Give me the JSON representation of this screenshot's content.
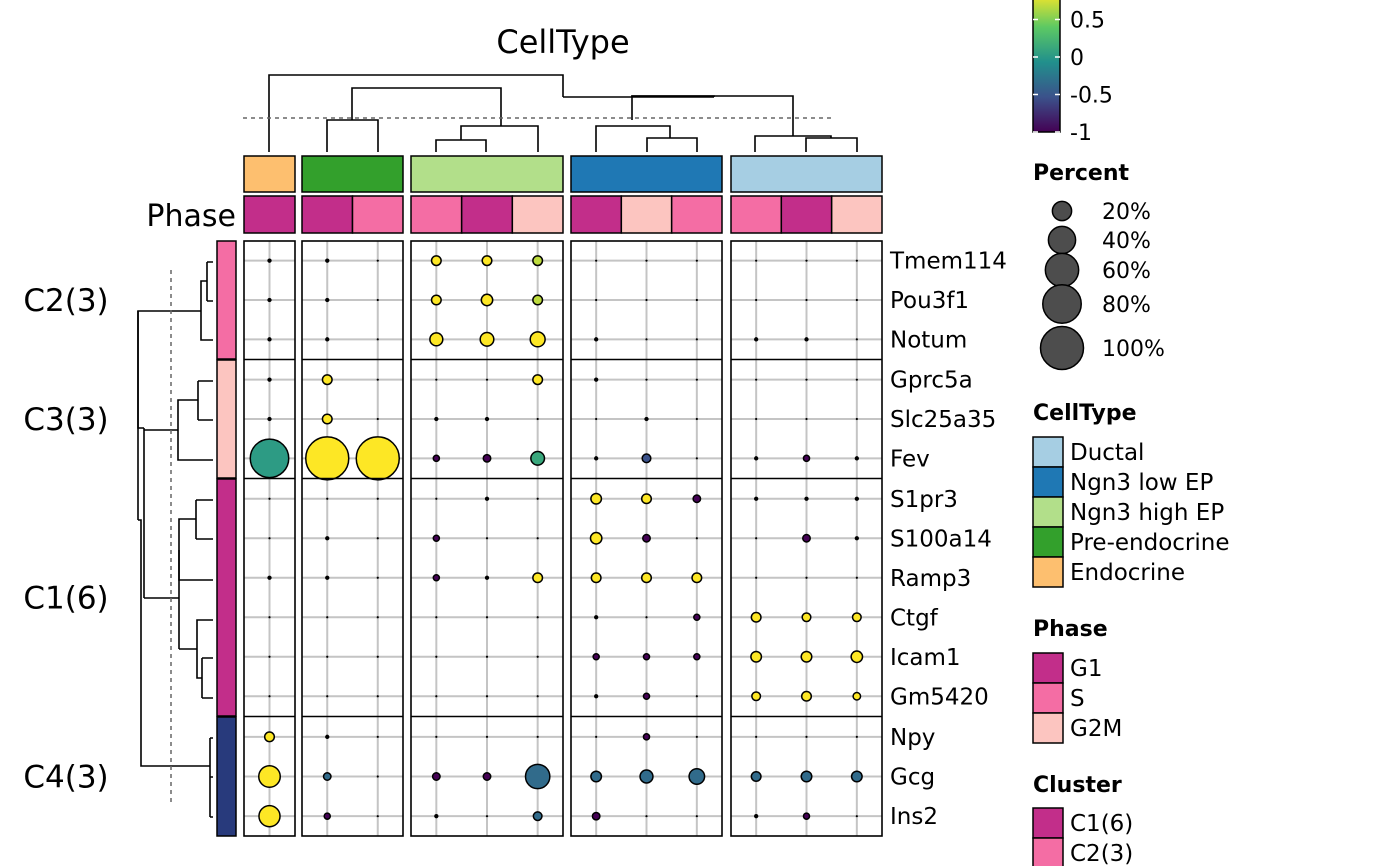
{
  "chart_data": {
    "type": "heatmap",
    "title": "CellType",
    "row_annotation_title": "Phase",
    "columns": [
      {
        "celltype": "Endocrine",
        "phase": "G1"
      },
      {
        "celltype": "Pre-endocrine",
        "phase": "G1"
      },
      {
        "celltype": "Pre-endocrine",
        "phase": "S"
      },
      {
        "celltype": "Ngn3 high EP",
        "phase": "S"
      },
      {
        "celltype": "Ngn3 high EP",
        "phase": "G1"
      },
      {
        "celltype": "Ngn3 high EP",
        "phase": "G2M"
      },
      {
        "celltype": "Ngn3 low EP",
        "phase": "G1"
      },
      {
        "celltype": "Ngn3 low EP",
        "phase": "G2M"
      },
      {
        "celltype": "Ngn3 low EP",
        "phase": "S"
      },
      {
        "celltype": "Ductal",
        "phase": "S"
      },
      {
        "celltype": "Ductal",
        "phase": "G1"
      },
      {
        "celltype": "Ductal",
        "phase": "G2M"
      }
    ],
    "row_groups": [
      {
        "label": "C2(3)",
        "phase": "S",
        "genes": [
          "Tmem114",
          "Pou3f1",
          "Notum"
        ]
      },
      {
        "label": "C3(3)",
        "phase": "G2M",
        "genes": [
          "Gprc5a",
          "Slc25a35",
          "Fev"
        ]
      },
      {
        "label": "C1(6)",
        "phase": "G1",
        "genes": [
          "S1pr3",
          "S100a14",
          "Ramp3",
          "Ctgf",
          "Icam1",
          "Gm5420"
        ]
      },
      {
        "label": "C4(3)",
        "phase": "NavyBlue",
        "genes": [
          "Npy",
          "Gcg",
          "Ins2"
        ]
      }
    ],
    "percent": [
      [
        1,
        1,
        0,
        5,
        5,
        5,
        0,
        0,
        0,
        0,
        0,
        0
      ],
      [
        1,
        1,
        0,
        5,
        7,
        5,
        0,
        0,
        0,
        0,
        0,
        0
      ],
      [
        1,
        1,
        0,
        9,
        10,
        12,
        1,
        0,
        0,
        1,
        1,
        0
      ],
      [
        1,
        5,
        0,
        0,
        0,
        5,
        1,
        0,
        0,
        0,
        0,
        0
      ],
      [
        1,
        5,
        0,
        1,
        1,
        0,
        0,
        1,
        0,
        0,
        0,
        0
      ],
      [
        80,
        100,
        100,
        2,
        3,
        10,
        1,
        4,
        0,
        1,
        2,
        1
      ],
      [
        0,
        0,
        0,
        0,
        1,
        0,
        6,
        5,
        3,
        1,
        1,
        1
      ],
      [
        0,
        1,
        0,
        2,
        0,
        0,
        7,
        3,
        0,
        0,
        3,
        1
      ],
      [
        1,
        1,
        0,
        2,
        1,
        5,
        5,
        5,
        5,
        0,
        0,
        0
      ],
      [
        0,
        0,
        0,
        0,
        0,
        0,
        1,
        0,
        2,
        5,
        4,
        4
      ],
      [
        0,
        0,
        0,
        0,
        0,
        0,
        2,
        2,
        2,
        6,
        6,
        7
      ],
      [
        0,
        0,
        0,
        0,
        0,
        0,
        1,
        2,
        0,
        4,
        5,
        3
      ],
      [
        5,
        1,
        0,
        0,
        0,
        0,
        0,
        2,
        0,
        0,
        0,
        0
      ],
      [
        25,
        3,
        0,
        3,
        3,
        32,
        6,
        9,
        13,
        5,
        6,
        6
      ],
      [
        24,
        2,
        0,
        1,
        0,
        4,
        3,
        0,
        0,
        1,
        2,
        0
      ]
    ],
    "expression": [
      [
        -1,
        -1,
        -1,
        1,
        1,
        0.8,
        -1,
        -1,
        -1,
        -1,
        -1,
        -1
      ],
      [
        -1,
        -1,
        -1,
        1,
        1,
        0.8,
        -1,
        -1,
        -1,
        -1,
        -1,
        -1
      ],
      [
        -1,
        -1,
        -1,
        1,
        1,
        1,
        -1,
        -1,
        -1,
        -1,
        -1,
        -1
      ],
      [
        -1,
        1,
        -1,
        -1,
        -1,
        1,
        -1,
        -1,
        -1,
        -1,
        -1,
        -1
      ],
      [
        -1,
        1,
        -1,
        -1,
        -1,
        -1,
        -1,
        -1,
        -1,
        -1,
        -1,
        -1
      ],
      [
        0.1,
        1,
        1,
        -1,
        -1,
        0.2,
        -0.5,
        -0.5,
        -1,
        -1,
        -1,
        -1
      ],
      [
        -1,
        -1,
        -1,
        -1,
        -1,
        -1,
        1,
        1,
        -1,
        -1,
        -1,
        -1
      ],
      [
        -1,
        -1,
        -1,
        -1,
        -1,
        -1,
        1,
        -1,
        -1,
        -1,
        -1,
        -1
      ],
      [
        -1,
        -1,
        -1,
        -1,
        -1,
        1,
        1,
        1,
        1,
        -1,
        -1,
        -1
      ],
      [
        -1,
        -1,
        -1,
        -1,
        -1,
        -1,
        -1,
        -1,
        -1,
        1,
        1,
        1
      ],
      [
        -1,
        -1,
        -1,
        -1,
        -1,
        -1,
        -1,
        -1,
        -1,
        1,
        1,
        1
      ],
      [
        -1,
        -1,
        -1,
        -1,
        -1,
        -1,
        -1,
        -1,
        -1,
        1,
        1,
        1
      ],
      [
        1,
        -1,
        -1,
        -1,
        -1,
        -1,
        -1,
        -1,
        -1,
        -1,
        -1,
        -1
      ],
      [
        1,
        -0.3,
        -1,
        -1,
        -1,
        -0.3,
        -0.3,
        -0.3,
        -0.3,
        -0.3,
        -0.3,
        -0.3
      ],
      [
        1,
        -1,
        -1,
        -1,
        -1,
        -0.3,
        -1,
        -1,
        -1,
        -1,
        -1,
        -1
      ]
    ],
    "color_scale": {
      "ticks": [
        "0.5",
        "0",
        "-0.5",
        "-1"
      ],
      "tick_values": [
        0.5,
        0,
        -0.5,
        -1
      ],
      "range": [
        -1,
        1
      ],
      "colors": [
        "#440154",
        "#3b528b",
        "#21908c",
        "#5dc963",
        "#fde725"
      ]
    },
    "size_legend": {
      "title": "Percent",
      "labels": [
        "20%",
        "40%",
        "60%",
        "80%",
        "100%"
      ],
      "values": [
        20,
        40,
        60,
        80,
        100
      ]
    },
    "celltype_legend": {
      "title": "CellType",
      "items": [
        {
          "label": "Ductal",
          "color": "#a6cee3"
        },
        {
          "label": "Ngn3 low EP",
          "color": "#1f78b4"
        },
        {
          "label": "Ngn3 high EP",
          "color": "#b2df8a"
        },
        {
          "label": "Pre-endocrine",
          "color": "#33a02c"
        },
        {
          "label": "Endocrine",
          "color": "#fdbf6f"
        }
      ]
    },
    "phase_legend": {
      "title": "Phase",
      "items": [
        {
          "label": "G1",
          "color": "#c22e8a"
        },
        {
          "label": "S",
          "color": "#f46da4"
        },
        {
          "label": "G2M",
          "color": "#fcc5c0"
        }
      ]
    },
    "cluster_legend": {
      "title": "Cluster",
      "items": [
        {
          "label": "C1(6)",
          "color": "#c22e8a"
        },
        {
          "label": "C2(3)",
          "color": "#f46da4"
        }
      ]
    }
  }
}
